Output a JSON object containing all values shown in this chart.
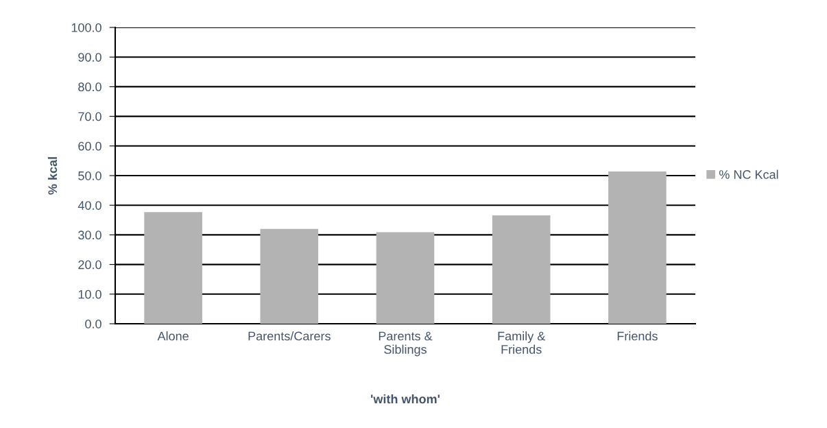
{
  "chart_data": {
    "type": "bar",
    "xlabel": "'with whom'",
    "ylabel": "% kcal",
    "categories": [
      "Alone",
      "Parents/Carers",
      "Parents &\nSiblings",
      "Family &\nFriends",
      "Friends"
    ],
    "series": [
      {
        "name": "% NC Kcal",
        "color": "#b3b3b3",
        "values": [
          37.7,
          32.0,
          30.9,
          36.6,
          51.4
        ]
      }
    ],
    "ylim": [
      0,
      100
    ],
    "yticks": [
      {
        "value": 0,
        "label": "0.0"
      },
      {
        "value": 10,
        "label": "10.0"
      },
      {
        "value": 20,
        "label": "20.0"
      },
      {
        "value": 30,
        "label": "30.0"
      },
      {
        "value": 40,
        "label": "40.0"
      },
      {
        "value": 50,
        "label": "50.0"
      },
      {
        "value": 60,
        "label": "60.0"
      },
      {
        "value": 70,
        "label": "70.0"
      },
      {
        "value": 80,
        "label": "80.0"
      },
      {
        "value": 90,
        "label": "90.0"
      },
      {
        "value": 100,
        "label": "100.0"
      }
    ],
    "grid": "y",
    "legend": "right"
  }
}
